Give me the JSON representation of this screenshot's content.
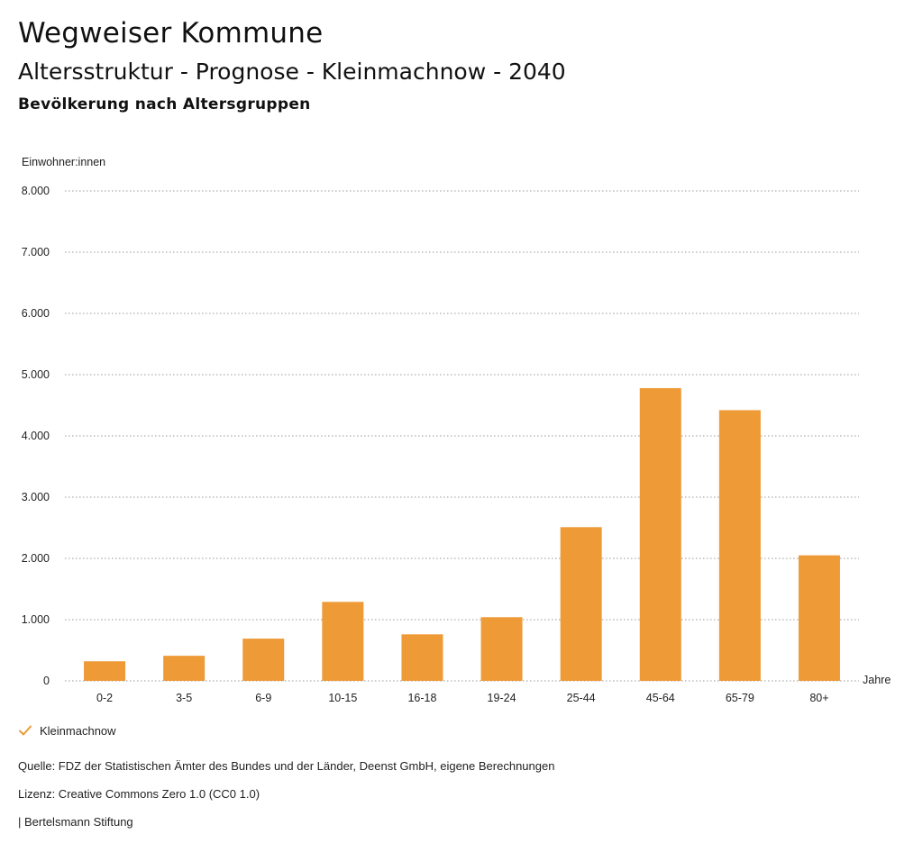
{
  "header": {
    "title": "Wegweiser Kommune",
    "subtitle": "Altersstruktur - Prognose - Kleinmachnow - 2040",
    "section": "Bevölkerung nach Altersgruppen"
  },
  "chart_data": {
    "type": "bar",
    "title": "Bevölkerung nach Altersgruppen",
    "ylabel": "Einwohner:innen",
    "xlabel": "Jahre",
    "ylim": [
      0,
      8000
    ],
    "yticks": [
      0,
      1000,
      2000,
      3000,
      4000,
      5000,
      6000,
      7000,
      8000
    ],
    "ytick_labels": [
      "0",
      "1.000",
      "2.000",
      "3.000",
      "4.000",
      "5.000",
      "6.000",
      "7.000",
      "8.000"
    ],
    "categories": [
      "0-2",
      "3-5",
      "6-9",
      "10-15",
      "16-18",
      "19-24",
      "25-44",
      "45-64",
      "65-79",
      "80+"
    ],
    "series": [
      {
        "name": "Kleinmachnow",
        "values": [
          320,
          410,
          690,
          1290,
          760,
          1040,
          2510,
          4780,
          4420,
          2050
        ]
      }
    ],
    "grid": true,
    "legend": "bottom-left",
    "bar_color": "#EE9A37"
  },
  "legend": {
    "items": [
      {
        "label": "Kleinmachnow",
        "icon": "check-icon",
        "color": "#EE9A37"
      }
    ]
  },
  "footer": {
    "source": "Quelle: FDZ der Statistischen Ämter des Bundes und der Länder, Deenst GmbH, eigene Berechnungen",
    "license": "Lizenz: Creative Commons Zero 1.0 (CC0 1.0)",
    "publisher": "| Bertelsmann Stiftung"
  }
}
